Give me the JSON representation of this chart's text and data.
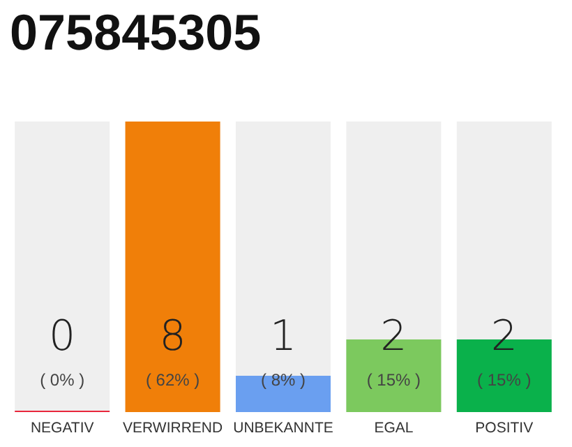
{
  "chart_data": {
    "type": "bar",
    "title": "075845305",
    "categories": [
      "NEGATIV",
      "VERWIRREND",
      "UNBEKANNTE",
      "EGAL",
      "POSITIV"
    ],
    "values": [
      0,
      8,
      1,
      2,
      2
    ],
    "colors": [
      "#e8273c",
      "#f07f09",
      "#6a9ff0",
      "#7cc95e",
      "#0ab14b"
    ],
    "ylim": [
      0,
      8
    ],
    "tick_labels": "x",
    "grid": false,
    "data_labels": true,
    "annotations": [
      "( 0% )",
      "( 62% )",
      "( 8% )",
      "( 15% )",
      "( 15% )"
    ]
  }
}
